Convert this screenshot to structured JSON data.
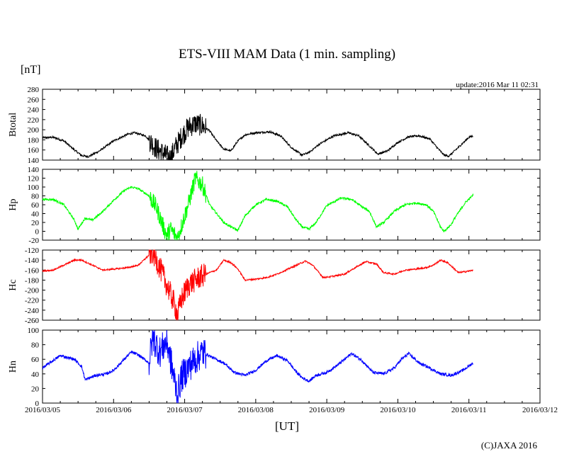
{
  "title": "ETS-VIII MAM Data (1 min. sampling)",
  "y_unit": "[nT]",
  "update": "update:2016 Mar 11 02:31",
  "x_unit": "[UT]",
  "credit": "(C)JAXA 2016",
  "chart_data": {
    "type": "line",
    "x_unit": "days since 2016/03/05 00:00 UT",
    "x_ticks": [
      "2016/03/05",
      "2016/03/06",
      "2016/03/07",
      "2016/03/08",
      "2016/03/09",
      "2016/03/10",
      "2016/03/11",
      "2016/03/12"
    ],
    "xlim": [
      0,
      7
    ],
    "data_end": 6.06,
    "panels": [
      {
        "name": "Btotal",
        "color": "#000000",
        "ylim": [
          140,
          280
        ],
        "yticks": [
          140,
          160,
          180,
          200,
          220,
          240,
          260,
          280
        ],
        "noise": 2,
        "storm_noise": 22,
        "points": [
          [
            0,
            184
          ],
          [
            0.15,
            185
          ],
          [
            0.3,
            178
          ],
          [
            0.45,
            160
          ],
          [
            0.55,
            149
          ],
          [
            0.65,
            147
          ],
          [
            0.8,
            158
          ],
          [
            1.0,
            178
          ],
          [
            1.2,
            191
          ],
          [
            1.3,
            194
          ],
          [
            1.45,
            188
          ],
          [
            1.6,
            163
          ],
          [
            1.75,
            148
          ],
          [
            1.8,
            143
          ],
          [
            1.85,
            160
          ],
          [
            1.95,
            185
          ],
          [
            2.05,
            205
          ],
          [
            2.15,
            212
          ],
          [
            2.25,
            208
          ],
          [
            2.35,
            198
          ],
          [
            2.45,
            178
          ],
          [
            2.55,
            162
          ],
          [
            2.65,
            158
          ],
          [
            2.75,
            178
          ],
          [
            2.85,
            190
          ],
          [
            3.0,
            194
          ],
          [
            3.2,
            196
          ],
          [
            3.35,
            188
          ],
          [
            3.5,
            165
          ],
          [
            3.65,
            150
          ],
          [
            3.75,
            155
          ],
          [
            3.9,
            172
          ],
          [
            4.1,
            188
          ],
          [
            4.3,
            194
          ],
          [
            4.45,
            188
          ],
          [
            4.6,
            168
          ],
          [
            4.72,
            152
          ],
          [
            4.85,
            158
          ],
          [
            5.0,
            175
          ],
          [
            5.15,
            186
          ],
          [
            5.3,
            188
          ],
          [
            5.45,
            182
          ],
          [
            5.55,
            165
          ],
          [
            5.65,
            150
          ],
          [
            5.72,
            148
          ],
          [
            5.85,
            165
          ],
          [
            6.0,
            185
          ],
          [
            6.06,
            188
          ]
        ]
      },
      {
        "name": "Hp",
        "color": "#00ff00",
        "ylim": [
          -20,
          140
        ],
        "yticks": [
          -20,
          0,
          20,
          40,
          60,
          80,
          100,
          120,
          140
        ],
        "noise": 2.5,
        "storm_noise": 20,
        "points": [
          [
            0,
            72
          ],
          [
            0.15,
            72
          ],
          [
            0.3,
            60
          ],
          [
            0.45,
            25
          ],
          [
            0.5,
            5
          ],
          [
            0.6,
            30
          ],
          [
            0.7,
            25
          ],
          [
            0.85,
            45
          ],
          [
            1.0,
            70
          ],
          [
            1.15,
            92
          ],
          [
            1.25,
            100
          ],
          [
            1.35,
            96
          ],
          [
            1.5,
            80
          ],
          [
            1.6,
            55
          ],
          [
            1.7,
            10
          ],
          [
            1.75,
            -10
          ],
          [
            1.8,
            5
          ],
          [
            1.85,
            -5
          ],
          [
            1.9,
            -15
          ],
          [
            1.95,
            10
          ],
          [
            2.05,
            60
          ],
          [
            2.15,
            120
          ],
          [
            2.25,
            105
          ],
          [
            2.35,
            60
          ],
          [
            2.45,
            40
          ],
          [
            2.55,
            20
          ],
          [
            2.65,
            10
          ],
          [
            2.75,
            2
          ],
          [
            2.85,
            35
          ],
          [
            3.0,
            60
          ],
          [
            3.15,
            72
          ],
          [
            3.3,
            68
          ],
          [
            3.45,
            55
          ],
          [
            3.55,
            30
          ],
          [
            3.65,
            10
          ],
          [
            3.75,
            5
          ],
          [
            3.85,
            20
          ],
          [
            4.0,
            58
          ],
          [
            4.2,
            75
          ],
          [
            4.35,
            72
          ],
          [
            4.5,
            55
          ],
          [
            4.6,
            45
          ],
          [
            4.7,
            10
          ],
          [
            4.8,
            20
          ],
          [
            4.95,
            45
          ],
          [
            5.1,
            60
          ],
          [
            5.25,
            64
          ],
          [
            5.4,
            60
          ],
          [
            5.5,
            45
          ],
          [
            5.6,
            10
          ],
          [
            5.65,
            0
          ],
          [
            5.75,
            15
          ],
          [
            5.8,
            30
          ],
          [
            5.95,
            65
          ],
          [
            6.06,
            82
          ]
        ]
      },
      {
        "name": "Hc",
        "color": "#ff0000",
        "ylim": [
          -260,
          -120
        ],
        "yticks": [
          -260,
          -240,
          -220,
          -200,
          -180,
          -160,
          -140,
          -120
        ],
        "noise": 1.5,
        "storm_noise": 24,
        "points": [
          [
            0,
            -162
          ],
          [
            0.15,
            -160
          ],
          [
            0.3,
            -150
          ],
          [
            0.45,
            -140
          ],
          [
            0.55,
            -140
          ],
          [
            0.7,
            -150
          ],
          [
            0.85,
            -160
          ],
          [
            1.0,
            -158
          ],
          [
            1.2,
            -155
          ],
          [
            1.35,
            -150
          ],
          [
            1.5,
            -130
          ],
          [
            1.55,
            -125
          ],
          [
            1.65,
            -155
          ],
          [
            1.75,
            -190
          ],
          [
            1.85,
            -225
          ],
          [
            1.9,
            -250
          ],
          [
            1.95,
            -220
          ],
          [
            2.05,
            -190
          ],
          [
            2.2,
            -175
          ],
          [
            2.35,
            -165
          ],
          [
            2.45,
            -160
          ],
          [
            2.55,
            -140
          ],
          [
            2.65,
            -145
          ],
          [
            2.75,
            -158
          ],
          [
            2.85,
            -180
          ],
          [
            3.0,
            -178
          ],
          [
            3.15,
            -175
          ],
          [
            3.3,
            -168
          ],
          [
            3.5,
            -155
          ],
          [
            3.7,
            -142
          ],
          [
            3.8,
            -150
          ],
          [
            3.95,
            -175
          ],
          [
            4.1,
            -172
          ],
          [
            4.25,
            -168
          ],
          [
            4.4,
            -155
          ],
          [
            4.55,
            -143
          ],
          [
            4.7,
            -148
          ],
          [
            4.8,
            -165
          ],
          [
            4.95,
            -168
          ],
          [
            5.1,
            -160
          ],
          [
            5.25,
            -158
          ],
          [
            5.4,
            -155
          ],
          [
            5.5,
            -150
          ],
          [
            5.6,
            -140
          ],
          [
            5.7,
            -145
          ],
          [
            5.85,
            -165
          ],
          [
            6.0,
            -162
          ],
          [
            6.06,
            -160
          ]
        ]
      },
      {
        "name": "Hn",
        "color": "#0000ff",
        "ylim": [
          0,
          100
        ],
        "yticks": [
          0,
          20,
          40,
          60,
          80,
          100
        ],
        "noise": 2,
        "storm_noise": 22,
        "points": [
          [
            0,
            48
          ],
          [
            0.1,
            55
          ],
          [
            0.25,
            65
          ],
          [
            0.45,
            60
          ],
          [
            0.55,
            50
          ],
          [
            0.6,
            32
          ],
          [
            0.75,
            38
          ],
          [
            0.9,
            40
          ],
          [
            1.0,
            45
          ],
          [
            1.15,
            60
          ],
          [
            1.25,
            70
          ],
          [
            1.35,
            66
          ],
          [
            1.5,
            55
          ],
          [
            1.55,
            90
          ],
          [
            1.65,
            70
          ],
          [
            1.75,
            85
          ],
          [
            1.8,
            60
          ],
          [
            1.85,
            35
          ],
          [
            1.9,
            10
          ],
          [
            1.95,
            35
          ],
          [
            2.1,
            55
          ],
          [
            2.25,
            70
          ],
          [
            2.4,
            62
          ],
          [
            2.55,
            55
          ],
          [
            2.7,
            42
          ],
          [
            2.85,
            38
          ],
          [
            3.0,
            45
          ],
          [
            3.15,
            58
          ],
          [
            3.3,
            65
          ],
          [
            3.45,
            58
          ],
          [
            3.55,
            45
          ],
          [
            3.65,
            35
          ],
          [
            3.75,
            30
          ],
          [
            3.85,
            38
          ],
          [
            4.0,
            42
          ],
          [
            4.15,
            52
          ],
          [
            4.35,
            68
          ],
          [
            4.5,
            58
          ],
          [
            4.65,
            42
          ],
          [
            4.8,
            40
          ],
          [
            4.95,
            48
          ],
          [
            5.05,
            60
          ],
          [
            5.15,
            68
          ],
          [
            5.3,
            55
          ],
          [
            5.45,
            48
          ],
          [
            5.6,
            40
          ],
          [
            5.75,
            38
          ],
          [
            5.9,
            44
          ],
          [
            6.06,
            55
          ]
        ]
      }
    ],
    "storm_window": [
      1.5,
      2.3
    ]
  }
}
